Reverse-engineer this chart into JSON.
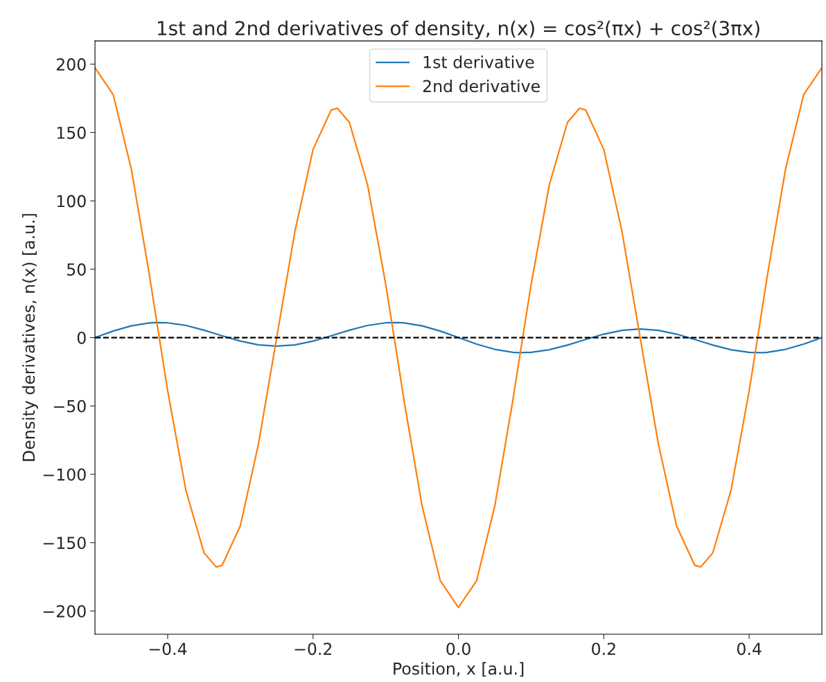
{
  "chart_data": {
    "type": "line",
    "title": "1st and 2nd derivatives of density, n(x) = cos²(πx) + cos²(3πx)",
    "xlabel": "Position, x [a.u.]",
    "ylabel": "Density derivatives, n(x) [a.u.]",
    "x": [
      -0.5,
      -0.475,
      -0.45,
      -0.425,
      -0.4167,
      -0.4,
      -0.375,
      -0.35,
      -0.3333,
      -0.325,
      -0.3,
      -0.275,
      -0.25,
      -0.225,
      -0.2,
      -0.175,
      -0.1667,
      -0.15,
      -0.125,
      -0.1,
      -0.0833,
      -0.075,
      -0.05,
      -0.025,
      0,
      0.025,
      0.05,
      0.075,
      0.0833,
      0.1,
      0.125,
      0.15,
      0.1667,
      0.175,
      0.2,
      0.225,
      0.25,
      0.275,
      0.3,
      0.325,
      0.3333,
      0.35,
      0.375,
      0.4,
      0.4167,
      0.425,
      0.45,
      0.475,
      0.5
    ],
    "series": [
      {
        "name": "1st derivative",
        "color": "#1f77b4",
        "values": [
          0,
          4.77,
          8.6,
          10.74,
          11.0,
          10.81,
          8.89,
          5.45,
          2.72,
          1.33,
          -2.55,
          -5.3,
          -6.28,
          -5.3,
          -2.55,
          1.33,
          2.72,
          5.45,
          8.89,
          10.81,
          11.0,
          10.74,
          8.6,
          4.77,
          0,
          -4.77,
          -8.6,
          -10.74,
          -11.0,
          -10.81,
          -8.89,
          -5.45,
          -2.72,
          -1.33,
          2.55,
          5.3,
          6.28,
          5.3,
          2.55,
          -1.33,
          -2.72,
          -5.45,
          -8.89,
          -10.81,
          -11.0,
          -10.74,
          -8.6,
          -4.77,
          0
        ]
      },
      {
        "name": "2nd derivative",
        "color": "#ff7f0e",
        "values": [
          197.4,
          177.8,
          123.2,
          45.4,
          17.1,
          -38.9,
          -111.7,
          -157.4,
          -167.8,
          -166.5,
          -137.6,
          -77.6,
          0,
          77.6,
          137.6,
          166.5,
          167.8,
          157.4,
          111.7,
          38.9,
          -17.1,
          -45.4,
          -123.2,
          -177.8,
          -197.4,
          -177.8,
          -123.2,
          -45.4,
          -17.1,
          38.9,
          111.7,
          157.4,
          167.8,
          166.5,
          137.6,
          77.6,
          0,
          -77.6,
          -137.6,
          -166.5,
          -167.8,
          -157.4,
          -111.7,
          -38.9,
          17.1,
          45.4,
          123.2,
          177.8,
          197.4
        ]
      }
    ],
    "ref_lines": [
      {
        "axis": "y",
        "value": 0,
        "color": "#000000",
        "line_style": "dashed"
      }
    ],
    "xlim": [
      -0.5,
      0.5
    ],
    "xticks": [
      {
        "value": -0.4,
        "label": "−0.4"
      },
      {
        "value": -0.2,
        "label": "−0.2"
      },
      {
        "value": 0.0,
        "label": "0.0"
      },
      {
        "value": 0.2,
        "label": "0.2"
      },
      {
        "value": 0.4,
        "label": "0.4"
      }
    ],
    "ylim": [
      -217,
      217
    ],
    "yticks": [
      {
        "value": -200,
        "label": "−200"
      },
      {
        "value": -150,
        "label": "−150"
      },
      {
        "value": -100,
        "label": "−100"
      },
      {
        "value": -50,
        "label": "−50"
      },
      0,
      50,
      100,
      150,
      200
    ],
    "grid": false,
    "legend": "top",
    "line_style": "solid",
    "marker": "none"
  }
}
